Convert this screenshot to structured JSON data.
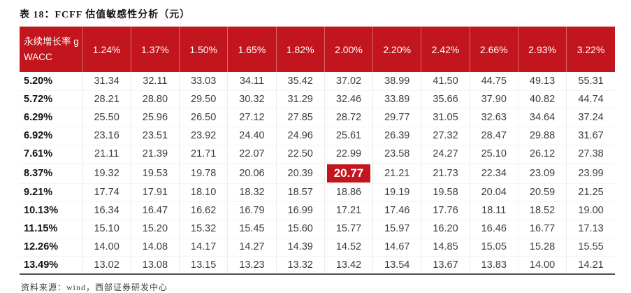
{
  "title": "表 18：FCFF 估值敏感性分析（元）",
  "source": "资料来源：wind，西部证券研发中心",
  "colors": {
    "accent_red": "#C2151D",
    "header_text": "#FFFFFF",
    "body_text": "#3D3D3D"
  },
  "chart_data": {
    "type": "table",
    "title": "表 18：FCFF 估值敏感性分析（元）",
    "corner_top": "永续增长率 g",
    "corner_bottom": "WACC",
    "growth_rates": [
      "1.24%",
      "1.37%",
      "1.50%",
      "1.65%",
      "1.82%",
      "2.00%",
      "2.20%",
      "2.42%",
      "2.66%",
      "2.93%",
      "3.22%"
    ],
    "rows": [
      {
        "wacc": "5.20%",
        "values": [
          "31.34",
          "32.11",
          "33.03",
          "34.11",
          "35.42",
          "37.02",
          "38.99",
          "41.50",
          "44.75",
          "49.13",
          "55.31"
        ]
      },
      {
        "wacc": "5.72%",
        "values": [
          "28.21",
          "28.80",
          "29.50",
          "30.32",
          "31.29",
          "32.46",
          "33.89",
          "35.66",
          "37.90",
          "40.82",
          "44.74"
        ]
      },
      {
        "wacc": "6.29%",
        "values": [
          "25.50",
          "25.96",
          "26.50",
          "27.12",
          "27.85",
          "28.72",
          "29.77",
          "31.05",
          "32.63",
          "34.64",
          "37.24"
        ]
      },
      {
        "wacc": "6.92%",
        "values": [
          "23.16",
          "23.51",
          "23.92",
          "24.40",
          "24.96",
          "25.61",
          "26.39",
          "27.32",
          "28.47",
          "29.88",
          "31.67"
        ]
      },
      {
        "wacc": "7.61%",
        "values": [
          "21.11",
          "21.39",
          "21.71",
          "22.07",
          "22.50",
          "22.99",
          "23.58",
          "24.27",
          "25.10",
          "26.12",
          "27.38"
        ]
      },
      {
        "wacc": "8.37%",
        "values": [
          "19.32",
          "19.53",
          "19.78",
          "20.06",
          "20.39",
          "20.77",
          "21.21",
          "21.73",
          "22.34",
          "23.09",
          "23.99"
        ]
      },
      {
        "wacc": "9.21%",
        "values": [
          "17.74",
          "17.91",
          "18.10",
          "18.32",
          "18.57",
          "18.86",
          "19.19",
          "19.58",
          "20.04",
          "20.59",
          "21.25"
        ]
      },
      {
        "wacc": "10.13%",
        "values": [
          "16.34",
          "16.47",
          "16.62",
          "16.79",
          "16.99",
          "17.21",
          "17.46",
          "17.76",
          "18.11",
          "18.52",
          "19.00"
        ]
      },
      {
        "wacc": "11.15%",
        "values": [
          "15.10",
          "15.20",
          "15.32",
          "15.45",
          "15.60",
          "15.77",
          "15.97",
          "16.20",
          "16.46",
          "16.77",
          "17.13"
        ]
      },
      {
        "wacc": "12.26%",
        "values": [
          "14.00",
          "14.08",
          "14.17",
          "14.27",
          "14.39",
          "14.52",
          "14.67",
          "14.85",
          "15.05",
          "15.28",
          "15.55"
        ]
      },
      {
        "wacc": "13.49%",
        "values": [
          "13.02",
          "13.08",
          "13.15",
          "13.23",
          "13.32",
          "13.42",
          "13.54",
          "13.67",
          "13.83",
          "14.00",
          "14.21"
        ]
      }
    ],
    "highlight": {
      "row_index": 5,
      "col_index": 5,
      "value": "20.77",
      "row_label": "8.37%",
      "col_label": "2.00%"
    },
    "source": "资料来源：wind，西部证券研发中心"
  }
}
